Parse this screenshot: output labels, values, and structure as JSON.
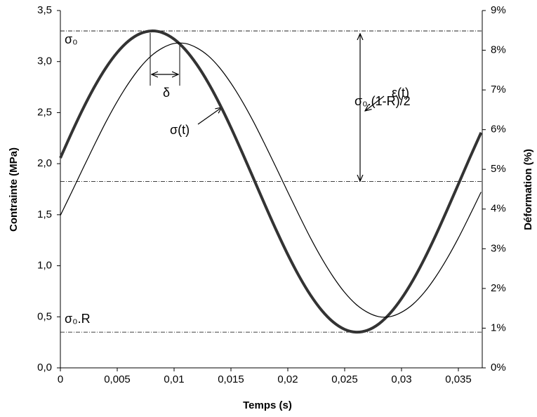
{
  "chart_data": {
    "type": "line",
    "xlabel": "Temps (s)",
    "ylabel": "Contrainte (MPa)",
    "y2label": "Déformation (%)",
    "x": [
      0,
      0.001,
      0.002,
      0.003,
      0.004,
      0.005,
      0.006,
      0.007,
      0.008,
      0.009,
      0.01,
      0.011,
      0.012,
      0.013,
      0.014,
      0.015,
      0.016,
      0.017,
      0.018,
      0.019,
      0.02,
      0.021,
      0.022,
      0.023,
      0.024,
      0.025,
      0.026,
      0.027,
      0.028,
      0.029,
      0.03,
      0.031,
      0.032,
      0.033,
      0.034,
      0.035,
      0.036,
      0.037
    ],
    "series": [
      {
        "name": "σ(t)",
        "color": "#333333",
        "width": 4,
        "values": [
          2.056,
          2.305,
          2.54,
          2.753,
          2.938,
          3.089,
          3.202,
          3.273,
          3.3,
          3.282,
          3.22,
          3.115,
          2.971,
          2.793,
          2.585,
          2.354,
          2.106,
          1.851,
          1.594,
          1.345,
          1.11,
          0.897,
          0.712,
          0.561,
          0.448,
          0.377,
          0.35,
          0.368,
          0.43,
          0.535,
          0.679,
          0.857,
          1.065,
          1.296,
          1.544,
          1.799,
          2.056,
          2.305
        ]
      },
      {
        "name": "ε(t)",
        "color": "#000000",
        "width": 1.2,
        "axis": "y2",
        "values": [
          3.84,
          4.43,
          5.03,
          5.62,
          6.19,
          6.71,
          7.17,
          7.56,
          7.86,
          8.06,
          8.17,
          8.17,
          8.06,
          7.86,
          7.56,
          7.17,
          6.71,
          6.19,
          5.62,
          5.03,
          4.43,
          3.84,
          3.27,
          2.75,
          2.29,
          1.9,
          1.6,
          1.4,
          1.29,
          1.29,
          1.4,
          1.6,
          1.9,
          2.29,
          2.75,
          3.27,
          3.84,
          4.43
        ]
      }
    ],
    "xlim": [
      0,
      0.0371
    ],
    "xticks": [
      0,
      {
        "value": 0.005,
        "label": "0,005"
      },
      {
        "value": 0.01,
        "label": "0,01"
      },
      {
        "value": 0.015,
        "label": "0,015"
      },
      {
        "value": 0.02,
        "label": "0,02"
      },
      {
        "value": 0.025,
        "label": "0,025"
      },
      {
        "value": 0.03,
        "label": "0,03"
      },
      {
        "value": 0.035,
        "label": "0,035"
      }
    ],
    "ylim": [
      0,
      3.5
    ],
    "yticks": [
      {
        "value": 0,
        "label": "0,0"
      },
      {
        "value": 0.5,
        "label": "0,5"
      },
      {
        "value": 1,
        "label": "1,0"
      },
      {
        "value": 1.5,
        "label": "1,5"
      },
      {
        "value": 2,
        "label": "2,0"
      },
      {
        "value": 2.5,
        "label": "2,5"
      },
      {
        "value": 3,
        "label": "3,0"
      },
      {
        "value": 3.5,
        "label": "3,5"
      }
    ],
    "y2lim": [
      0,
      9
    ],
    "y2ticks": [
      {
        "value": 0,
        "label": "0%"
      },
      {
        "value": 1,
        "label": "1%"
      },
      {
        "value": 2,
        "label": "2%"
      },
      {
        "value": 3,
        "label": "3%"
      },
      {
        "value": 4,
        "label": "4%"
      },
      {
        "value": 5,
        "label": "5%"
      },
      {
        "value": 6,
        "label": "6%"
      },
      {
        "value": 7,
        "label": "7%"
      },
      {
        "value": 8,
        "label": "8%"
      },
      {
        "value": 9,
        "label": "9%"
      }
    ],
    "reference_lines": [
      3.3,
      1.825,
      0.35
    ],
    "annotations": {
      "sigma0": "σ₀",
      "sigma0R": "σ₀.R",
      "amplitude": "σ₀.(1-R)/2",
      "delta": "δ"
    }
  }
}
